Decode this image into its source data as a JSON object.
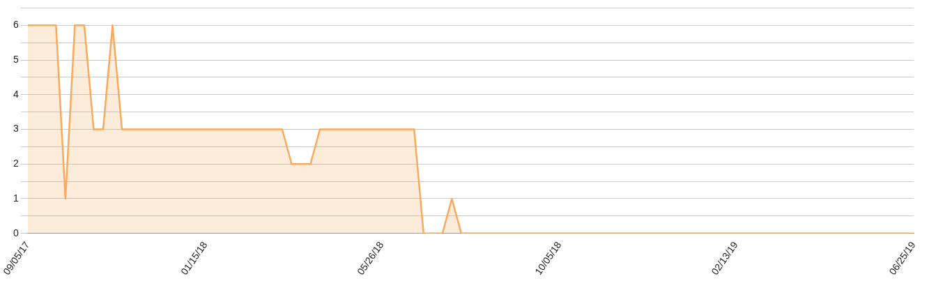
{
  "chart_data": {
    "type": "area",
    "x": [
      "2017-09-05",
      "2017-09-12",
      "2017-09-19",
      "2017-09-26",
      "2017-10-03",
      "2017-10-10",
      "2017-10-17",
      "2017-10-24",
      "2017-10-31",
      "2017-11-07",
      "2017-11-14",
      "2018-03-13",
      "2018-03-20",
      "2018-04-03",
      "2018-04-10",
      "2018-06-19",
      "2018-06-26",
      "2018-07-10",
      "2018-07-17",
      "2018-07-24",
      "2019-06-25"
    ],
    "series": [
      {
        "color": "#f9a95a",
        "values": [
          6,
          6,
          6,
          6,
          1,
          6,
          6,
          3,
          3,
          6,
          3,
          3,
          2,
          2,
          3,
          3,
          0,
          0,
          1,
          0,
          0
        ]
      }
    ],
    "xlim": [
      "2017-09-05",
      "2019-06-25"
    ],
    "xticks": [
      {
        "value": "2017-09-05",
        "label": "09/05/17"
      },
      {
        "value": "2018-01-15",
        "label": "01/15/18"
      },
      {
        "value": "2018-05-26",
        "label": "05/26/18"
      },
      {
        "value": "2018-10-05",
        "label": "10/05/18"
      },
      {
        "value": "2019-02-13",
        "label": "02/13/19"
      },
      {
        "value": "2019-06-25",
        "label": "06/25/19"
      }
    ],
    "ylim": [
      0,
      6.5
    ],
    "yticks": [
      0,
      {
        "value": 0.5,
        "label": null
      },
      1,
      {
        "value": 1.5,
        "label": null
      },
      2,
      {
        "value": 2.5,
        "label": null
      },
      3,
      {
        "value": 3.5,
        "label": null
      },
      4,
      {
        "value": 4.5,
        "label": null
      },
      5,
      {
        "value": 5.5,
        "label": null
      },
      6,
      {
        "value": 6.5,
        "label": null
      }
    ],
    "grid": "y",
    "legend": false,
    "marker": "none",
    "line_style": "solid"
  }
}
